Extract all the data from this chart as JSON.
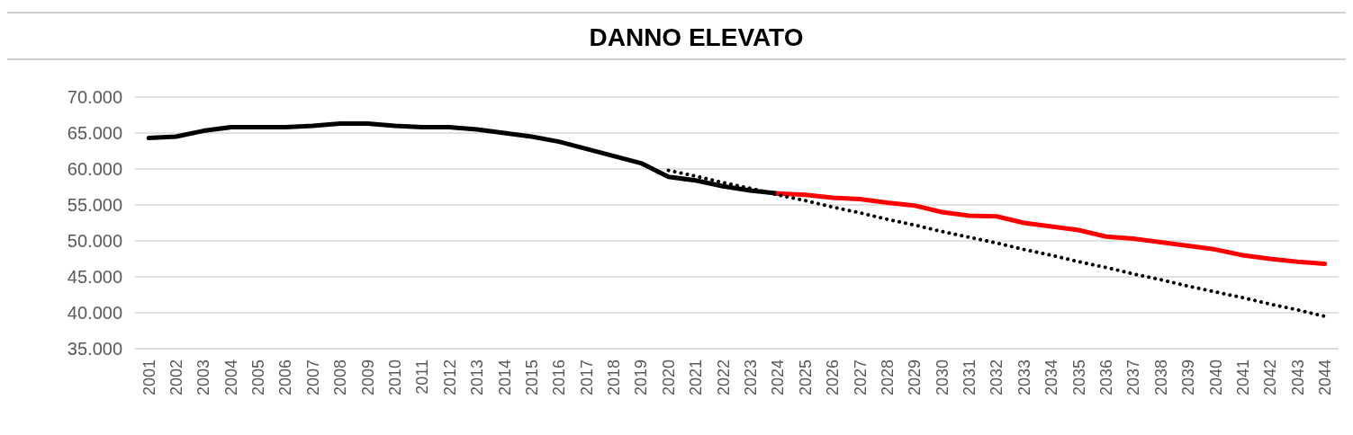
{
  "chart_data": {
    "type": "line",
    "title": "DANNO ELEVATO",
    "categories": [
      "2001",
      "2002",
      "2003",
      "2004",
      "2005",
      "2006",
      "2007",
      "2008",
      "2009",
      "2010",
      "2011",
      "2012",
      "2013",
      "2014",
      "2015",
      "2016",
      "2017",
      "2018",
      "2019",
      "2020",
      "2021",
      "2022",
      "2023",
      "2024",
      "2025",
      "2026",
      "2027",
      "2028",
      "2029",
      "2030",
      "2031",
      "2032",
      "2033",
      "2034",
      "2035",
      "2036",
      "2037",
      "2038",
      "2039",
      "2040",
      "2041",
      "2042",
      "2043",
      "2044"
    ],
    "series": [
      {
        "color": "#000000",
        "values": [
          64300,
          64500,
          65300,
          65800,
          65800,
          65800,
          66000,
          66300,
          66300,
          66000,
          65800,
          65800,
          65500,
          65000,
          64500,
          63800,
          62800,
          61800,
          60800,
          58900,
          58400,
          57600,
          57000,
          56600,
          null,
          null,
          null,
          null,
          null,
          null,
          null,
          null,
          null,
          null,
          null,
          null,
          null,
          null,
          null,
          null,
          null,
          null,
          null,
          null
        ]
      },
      {
        "color": "#ff0000",
        "values": [
          null,
          null,
          null,
          null,
          null,
          null,
          null,
          null,
          null,
          null,
          null,
          null,
          null,
          null,
          null,
          null,
          null,
          null,
          null,
          null,
          null,
          null,
          null,
          56600,
          56400,
          56000,
          55800,
          55300,
          54900,
          54000,
          53500,
          53400,
          52500,
          52000,
          51500,
          50600,
          50300,
          49800,
          49300,
          48800,
          48000,
          47500,
          47100,
          46800
        ]
      },
      {
        "color": "#000000",
        "type": "line",
        "line_style": "dotted",
        "values": [
          null,
          null,
          null,
          null,
          null,
          null,
          null,
          null,
          null,
          null,
          null,
          null,
          null,
          null,
          null,
          null,
          null,
          null,
          null,
          59800,
          59000,
          58100,
          57300,
          56400,
          55600,
          54700,
          53900,
          53000,
          52200,
          51300,
          50500,
          49700,
          48800,
          48000,
          47100,
          46300,
          45400,
          44600,
          43700,
          42900,
          42100,
          41200,
          40400,
          39500
        ]
      }
    ],
    "ylim": [
      35000,
      70000
    ],
    "yticks": [
      {
        "value": 35000,
        "label": "35.000"
      },
      {
        "value": 40000,
        "label": "40.000"
      },
      {
        "value": 45000,
        "label": "45.000"
      },
      {
        "value": 50000,
        "label": "50.000"
      },
      {
        "value": 55000,
        "label": "55.000"
      },
      {
        "value": 60000,
        "label": "60.000"
      },
      {
        "value": 65000,
        "label": "65.000"
      },
      {
        "value": 70000,
        "label": "70.000"
      }
    ],
    "grid": "y",
    "line_style": "solid"
  }
}
